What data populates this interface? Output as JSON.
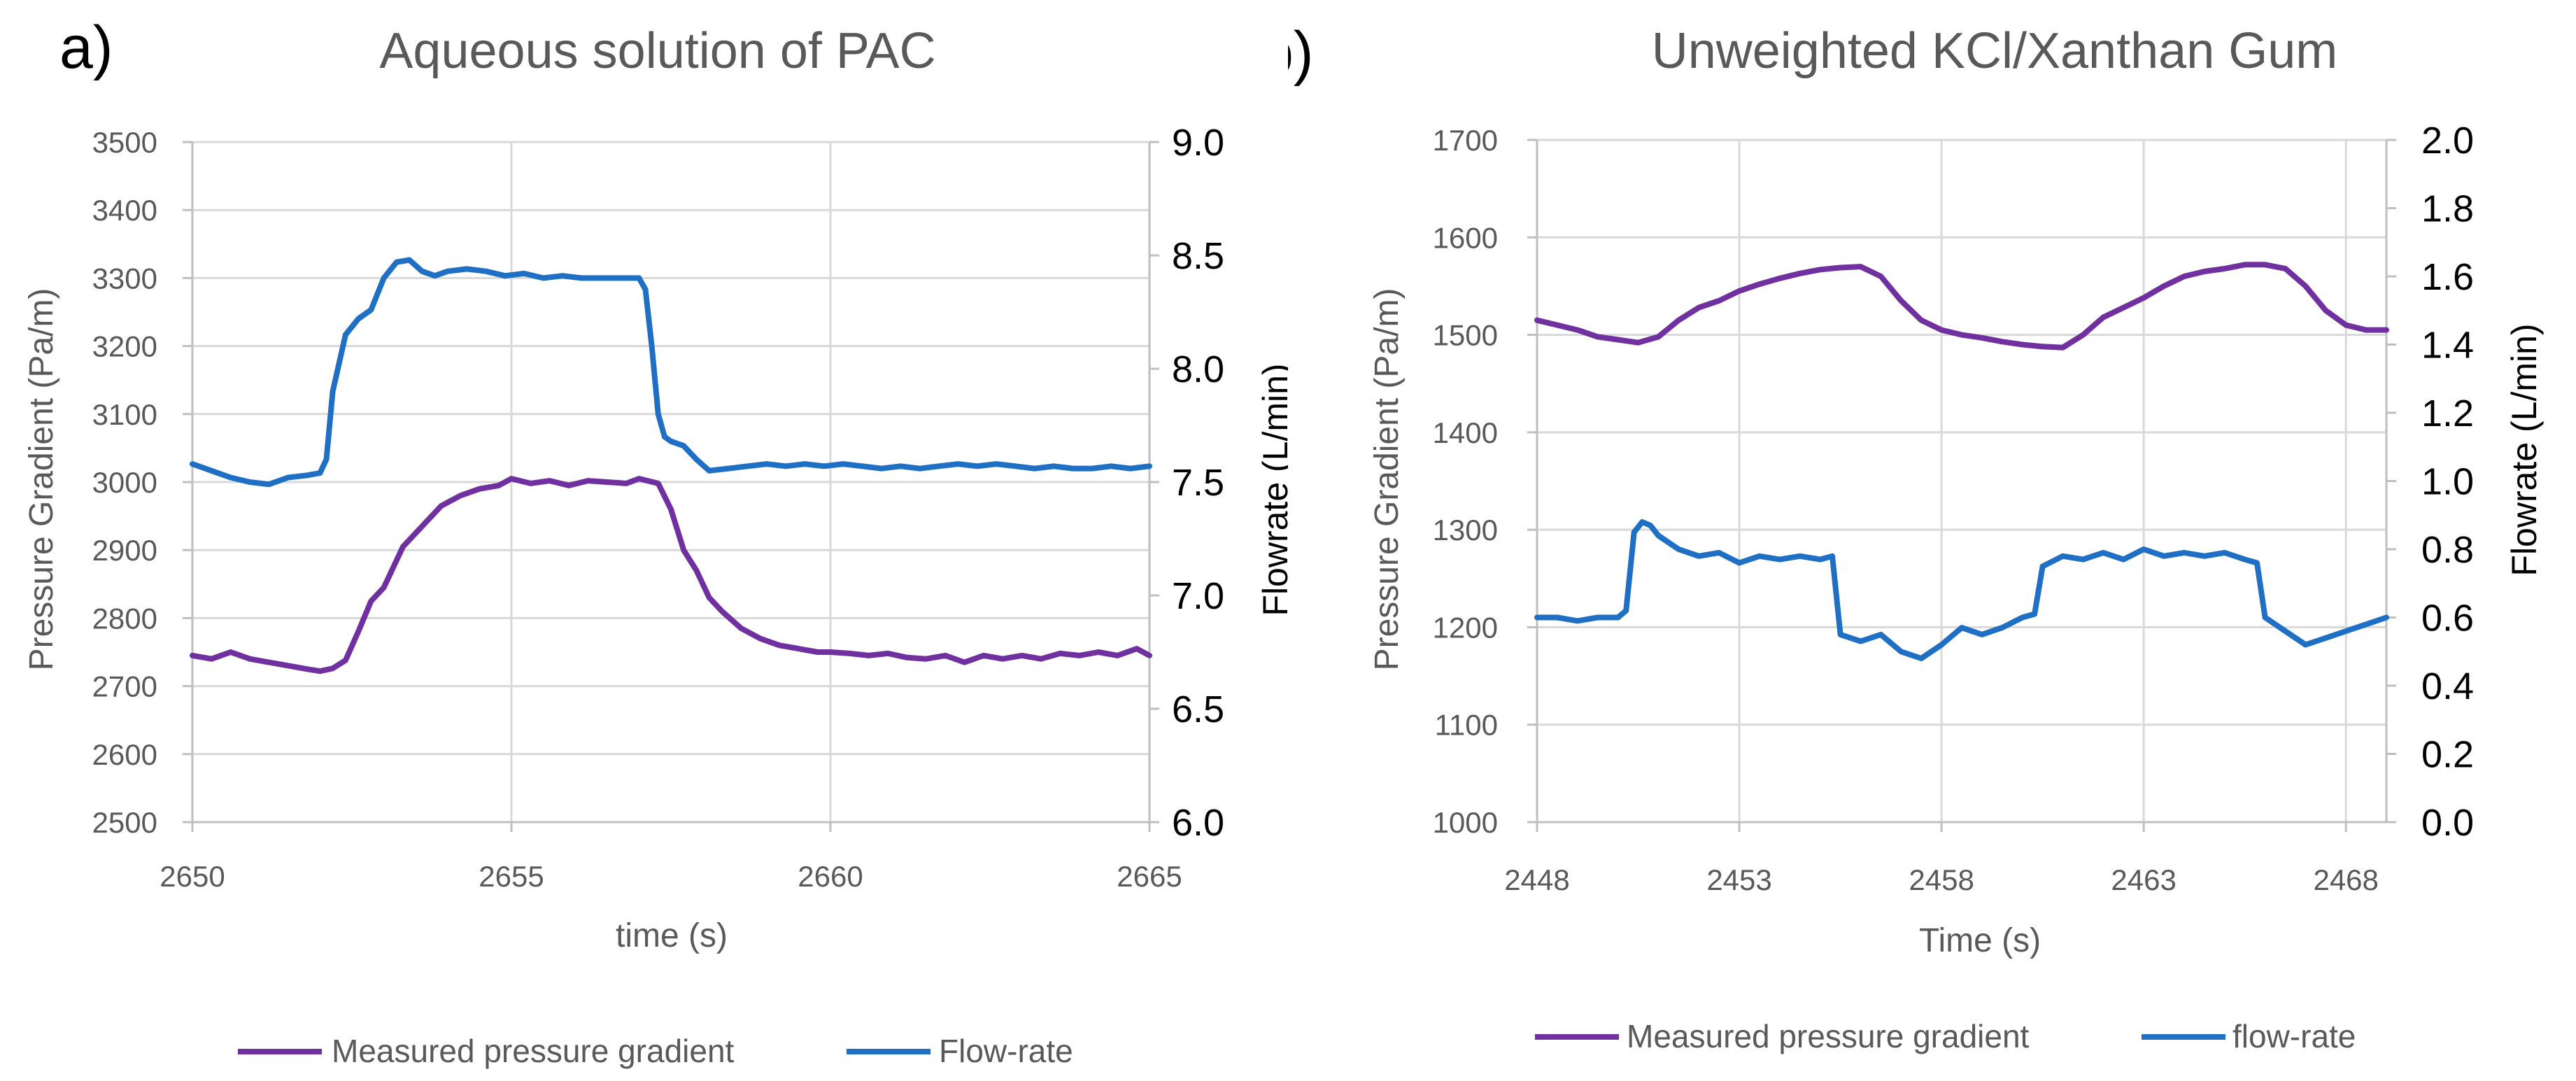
{
  "chart_data": [
    {
      "type": "line",
      "panel_label": "a)",
      "title": "Aqueous solution of PAC",
      "xlabel": "time (s)",
      "ylabel": "Pressure Gradient (Pa/m)",
      "y2label": "Flowrate (L/min)",
      "xlim": [
        2650,
        2665
      ],
      "ylim": [
        2500,
        3500
      ],
      "y2lim": [
        6.0,
        9.0
      ],
      "xticks": [
        "2650",
        "2655",
        "2660",
        "2665"
      ],
      "yticks": [
        "2500",
        "2600",
        "2700",
        "2800",
        "2900",
        "3000",
        "3100",
        "3200",
        "3300",
        "3400",
        "3500"
      ],
      "y2ticks": [
        "6.0",
        "6.5",
        "7.0",
        "7.5",
        "8.0",
        "8.5",
        "9.0"
      ],
      "legend_position": "bottom",
      "grid": true,
      "series": [
        {
          "name": "Measured pressure gradient",
          "axis": "left",
          "color": "#7030a0",
          "x": [
            2650.0,
            2650.3,
            2650.6,
            2650.9,
            2651.2,
            2651.5,
            2651.8,
            2652.0,
            2652.2,
            2652.4,
            2652.6,
            2652.8,
            2653.0,
            2653.3,
            2653.6,
            2653.9,
            2654.2,
            2654.5,
            2654.8,
            2655.0,
            2655.3,
            2655.6,
            2655.9,
            2656.2,
            2656.5,
            2656.8,
            2657.0,
            2657.3,
            2657.5,
            2657.7,
            2657.9,
            2658.1,
            2658.3,
            2658.6,
            2658.9,
            2659.2,
            2659.5,
            2659.8,
            2660.0,
            2660.3,
            2660.6,
            2660.9,
            2661.2,
            2661.5,
            2661.8,
            2662.1,
            2662.4,
            2662.7,
            2663.0,
            2663.3,
            2663.6,
            2663.9,
            2664.2,
            2664.5,
            2664.8,
            2665.0
          ],
          "values": [
            2745,
            2740,
            2750,
            2740,
            2735,
            2730,
            2725,
            2722,
            2726,
            2738,
            2780,
            2825,
            2845,
            2905,
            2935,
            2965,
            2980,
            2990,
            2995,
            3005,
            2998,
            3002,
            2995,
            3002,
            3000,
            2998,
            3005,
            2998,
            2960,
            2900,
            2870,
            2830,
            2810,
            2785,
            2770,
            2760,
            2755,
            2750,
            2750,
            2748,
            2745,
            2748,
            2742,
            2740,
            2745,
            2735,
            2745,
            2740,
            2745,
            2740,
            2748,
            2745,
            2750,
            2745,
            2755,
            2745
          ]
        },
        {
          "name": "Flow-rate",
          "axis": "right",
          "color": "#1f6fc5",
          "x": [
            2650.0,
            2650.3,
            2650.6,
            2650.9,
            2651.2,
            2651.5,
            2651.8,
            2652.0,
            2652.1,
            2652.2,
            2652.4,
            2652.6,
            2652.8,
            2653.0,
            2653.2,
            2653.4,
            2653.6,
            2653.8,
            2654.0,
            2654.3,
            2654.6,
            2654.9,
            2655.2,
            2655.5,
            2655.8,
            2656.1,
            2656.4,
            2656.7,
            2657.0,
            2657.1,
            2657.2,
            2657.3,
            2657.4,
            2657.5,
            2657.7,
            2657.9,
            2658.1,
            2658.4,
            2658.7,
            2659.0,
            2659.3,
            2659.6,
            2659.9,
            2660.2,
            2660.5,
            2660.8,
            2661.1,
            2661.4,
            2661.7,
            2662.0,
            2662.3,
            2662.6,
            2662.9,
            2663.2,
            2663.5,
            2663.8,
            2664.1,
            2664.4,
            2664.7,
            2665.0
          ],
          "values": [
            7.58,
            7.55,
            7.52,
            7.5,
            7.49,
            7.52,
            7.53,
            7.54,
            7.6,
            7.9,
            8.15,
            8.22,
            8.26,
            8.4,
            8.47,
            8.48,
            8.43,
            8.41,
            8.43,
            8.44,
            8.43,
            8.41,
            8.42,
            8.4,
            8.41,
            8.4,
            8.4,
            8.4,
            8.4,
            8.35,
            8.1,
            7.8,
            7.7,
            7.68,
            7.66,
            7.6,
            7.55,
            7.56,
            7.57,
            7.58,
            7.57,
            7.58,
            7.57,
            7.58,
            7.57,
            7.56,
            7.57,
            7.56,
            7.57,
            7.58,
            7.57,
            7.58,
            7.57,
            7.56,
            7.57,
            7.56,
            7.56,
            7.57,
            7.56,
            7.57
          ]
        }
      ]
    },
    {
      "type": "line",
      "panel_label": "b)",
      "title": "Unweighted KCl/Xanthan Gum",
      "xlabel": "Time (s)",
      "ylabel": "Pressure Gradient (Pa/m)",
      "y2label": "Flowrate (L/min)",
      "xlim": [
        2448,
        2469
      ],
      "ylim": [
        1000,
        1700
      ],
      "y2lim": [
        0.0,
        2.0
      ],
      "xticks": [
        "2448",
        "2453",
        "2458",
        "2463",
        "2468"
      ],
      "yticks": [
        "1000",
        "1100",
        "1200",
        "1300",
        "1400",
        "1500",
        "1600",
        "1700"
      ],
      "y2ticks": [
        "0.0",
        "0.2",
        "0.4",
        "0.6",
        "0.8",
        "1.0",
        "1.2",
        "1.4",
        "1.6",
        "1.8",
        "2.0"
      ],
      "legend_position": "bottom",
      "grid": true,
      "series": [
        {
          "name": "Measured pressure gradient",
          "axis": "left",
          "color": "#7030a0",
          "x": [
            2448.0,
            2448.5,
            2449.0,
            2449.5,
            2450.0,
            2450.5,
            2451.0,
            2451.5,
            2452.0,
            2452.5,
            2453.0,
            2453.5,
            2454.0,
            2454.5,
            2455.0,
            2455.5,
            2456.0,
            2456.5,
            2457.0,
            2457.5,
            2458.0,
            2458.5,
            2459.0,
            2459.5,
            2460.0,
            2460.5,
            2461.0,
            2461.5,
            2462.0,
            2462.5,
            2463.0,
            2463.5,
            2464.0,
            2464.5,
            2465.0,
            2465.5,
            2466.0,
            2466.5,
            2467.0,
            2467.5,
            2468.0,
            2468.5,
            2469.0
          ],
          "values": [
            1515,
            1510,
            1505,
            1498,
            1495,
            1492,
            1498,
            1515,
            1528,
            1535,
            1545,
            1552,
            1558,
            1563,
            1567,
            1569,
            1570,
            1560,
            1535,
            1515,
            1505,
            1500,
            1497,
            1493,
            1490,
            1488,
            1487,
            1500,
            1518,
            1528,
            1538,
            1550,
            1560,
            1565,
            1568,
            1572,
            1572,
            1568,
            1550,
            1525,
            1510,
            1505,
            1505
          ]
        },
        {
          "name": "flow-rate",
          "axis": "right",
          "color": "#1f6fc5",
          "x": [
            2448.0,
            2448.5,
            2449.0,
            2449.5,
            2450.0,
            2450.2,
            2450.4,
            2450.6,
            2450.8,
            2451.0,
            2451.5,
            2452.0,
            2452.5,
            2453.0,
            2453.5,
            2454.0,
            2454.5,
            2455.0,
            2455.3,
            2455.5,
            2456.0,
            2456.5,
            2457.0,
            2457.5,
            2458.0,
            2458.5,
            2459.0,
            2459.5,
            2460.0,
            2460.3,
            2460.5,
            2461.0,
            2461.5,
            2462.0,
            2462.5,
            2463.0,
            2463.5,
            2464.0,
            2464.5,
            2465.0,
            2465.5,
            2465.8,
            2466.0,
            2466.5,
            2467.0,
            2467.5,
            2468.0,
            2468.5,
            2469.0
          ],
          "values": [
            0.6,
            0.6,
            0.59,
            0.6,
            0.6,
            0.62,
            0.85,
            0.88,
            0.87,
            0.84,
            0.8,
            0.78,
            0.79,
            0.76,
            0.78,
            0.77,
            0.78,
            0.77,
            0.78,
            0.55,
            0.53,
            0.55,
            0.5,
            0.48,
            0.52,
            0.57,
            0.55,
            0.57,
            0.6,
            0.61,
            0.75,
            0.78,
            0.77,
            0.79,
            0.77,
            0.8,
            0.78,
            0.79,
            0.78,
            0.79,
            0.77,
            0.76,
            0.6,
            0.56,
            0.52,
            0.54,
            0.56,
            0.58,
            0.6
          ]
        }
      ]
    }
  ]
}
